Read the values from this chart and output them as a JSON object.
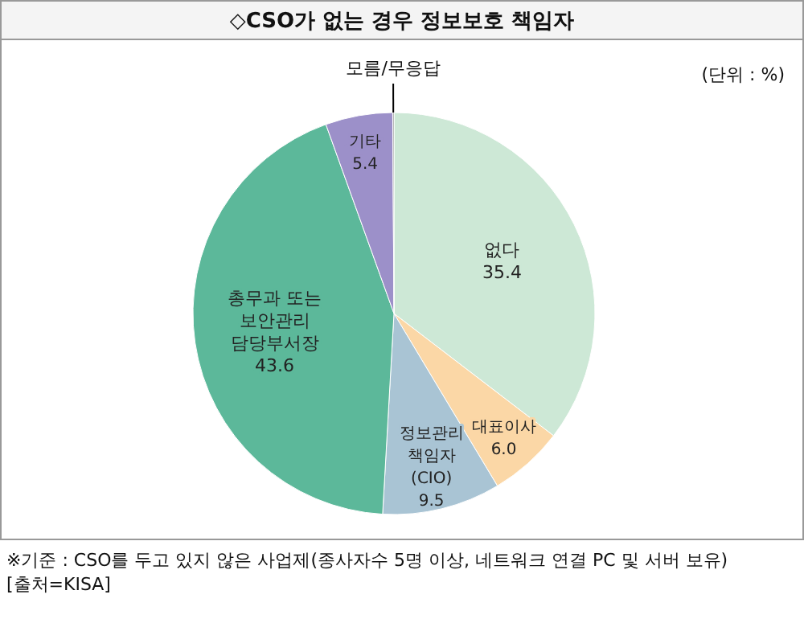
{
  "chart_data": {
    "type": "pie",
    "title": "◇CSO가 없는 경우 정보보호 책임자",
    "subtitle": "(단위 : %)",
    "categories": [
      "없다",
      "대표이사",
      "정보관리\n책임자\n(CIO)",
      "총무과 또는\n보안관리\n담당부서장",
      "기타",
      "모름/무응답"
    ],
    "values": [
      35.4,
      6.0,
      9.5,
      43.6,
      5.4,
      0.1
    ],
    "value_labels": [
      "35.4",
      "6.0",
      "9.5",
      "43.6",
      "5.4",
      null
    ],
    "colors": [
      "#cde8d6",
      "#fbd7a6",
      "#a9c4d4",
      "#5cb89a",
      "#9c90c9",
      "#6f6f6f"
    ],
    "annotations": [
      "※기준 : CSO를 두고 있지 않은 사업제(종사자수 5명 이상, 네트워크 연결 PC 및 서버 보유)",
      "[출처=KISA]"
    ]
  }
}
